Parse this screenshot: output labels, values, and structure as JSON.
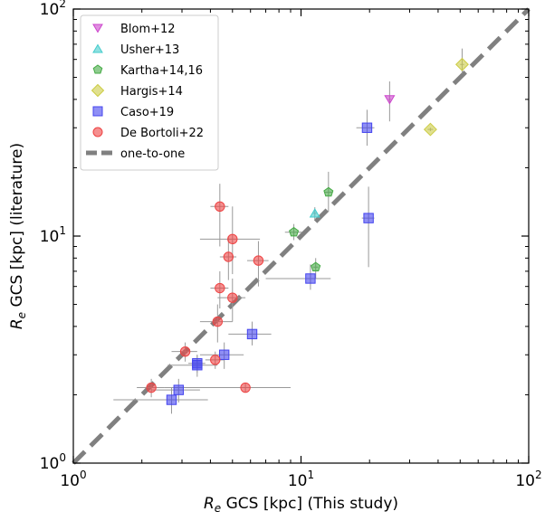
{
  "chart_data": {
    "type": "scatter",
    "xscale": "log",
    "yscale": "log",
    "xlim": [
      1,
      100
    ],
    "ylim": [
      1,
      100
    ],
    "xlabel_var": "R",
    "xlabel_sub": "e",
    "xlabel_rest": " GCS [kpc] (This study)",
    "ylabel_var": "R",
    "ylabel_sub": "e",
    "ylabel_rest": " GCS [kpc] (literature)",
    "xticks": [
      {
        "value": 1,
        "base": "10",
        "exp": "0"
      },
      {
        "value": 10,
        "base": "10",
        "exp": "1"
      },
      {
        "value": 100,
        "base": "10",
        "exp": "2"
      }
    ],
    "yticks": [
      {
        "value": 1,
        "base": "10",
        "exp": "0"
      },
      {
        "value": 10,
        "base": "10",
        "exp": "1"
      },
      {
        "value": 100,
        "base": "10",
        "exp": "2"
      }
    ],
    "legend_position": "top-left",
    "reference_line": {
      "name": "one-to-one",
      "color": "#808080"
    },
    "series": [
      {
        "name": "Blom+12",
        "marker": "triangle-down",
        "color": "#cc44cc",
        "points": [
          {
            "x": 24.5,
            "y": 40,
            "xerr": [
              24.2,
              24.8
            ],
            "yerr": [
              32,
              48
            ]
          }
        ]
      },
      {
        "name": "Usher+13",
        "marker": "triangle-up",
        "color": "#44cccc",
        "points": [
          {
            "x": 11.5,
            "y": 12.6,
            "xerr": [
              11.3,
              11.7
            ],
            "yerr": [
              11.8,
              13.4
            ]
          }
        ]
      },
      {
        "name": "Kartha+14,16",
        "marker": "pentagon",
        "color": "#44aa44",
        "points": [
          {
            "x": 9.3,
            "y": 10.4,
            "xerr": [
              8.5,
              10.1
            ],
            "yerr": [
              9.6,
              11.3
            ]
          },
          {
            "x": 13.2,
            "y": 15.6,
            "xerr": [
              12.7,
              13.7
            ],
            "yerr": [
              12.8,
              19.2
            ]
          },
          {
            "x": 11.6,
            "y": 7.3,
            "xerr": [
              11.3,
              11.9
            ],
            "yerr": [
              6.5,
              8.0
            ]
          }
        ]
      },
      {
        "name": "Hargis+14",
        "marker": "diamond",
        "color": "#cccc44",
        "points": [
          {
            "x": 51,
            "y": 57,
            "xerr": [
              50,
              52
            ],
            "yerr": [
              52,
              67
            ]
          },
          {
            "x": 37,
            "y": 29.5,
            "xerr": [
              36,
              38
            ],
            "yerr": [
              29,
              30
            ]
          }
        ]
      },
      {
        "name": "Caso+19",
        "marker": "square",
        "color": "#4444ee",
        "points": [
          {
            "x": 19.5,
            "y": 30,
            "xerr": [
              17.5,
              21
            ],
            "yerr": [
              25,
              36
            ]
          },
          {
            "x": 19.8,
            "y": 12,
            "xerr": [
              18.5,
              21
            ],
            "yerr": [
              7.3,
              16.5
            ]
          },
          {
            "x": 11.0,
            "y": 6.5,
            "xerr": [
              7,
              13.5
            ],
            "yerr": [
              5.8,
              7.5
            ]
          },
          {
            "x": 6.1,
            "y": 3.7,
            "xerr": [
              4.8,
              7.4
            ],
            "yerr": [
              3.3,
              4.2
            ]
          },
          {
            "x": 4.6,
            "y": 3.0,
            "xerr": [
              3.6,
              5.6
            ],
            "yerr": [
              2.6,
              3.4
            ]
          },
          {
            "x": 3.5,
            "y": 2.75,
            "xerr": [
              3.2,
              3.8
            ],
            "yerr": [
              2.5,
              3.0
            ]
          },
          {
            "x": 3.5,
            "y": 2.7,
            "xerr": [
              2.6,
              4.3
            ],
            "yerr": [
              2.4,
              3.0
            ]
          },
          {
            "x": 2.9,
            "y": 2.1,
            "xerr": [
              2.2,
              3.6
            ],
            "yerr": [
              1.85,
              2.35
            ]
          },
          {
            "x": 2.7,
            "y": 1.9,
            "xerr": [
              1.5,
              3.9
            ],
            "yerr": [
              1.65,
              2.15
            ]
          }
        ]
      },
      {
        "name": "De Bortoli+22",
        "marker": "circle",
        "color": "#ee4444",
        "points": [
          {
            "x": 4.4,
            "y": 13.5,
            "xerr": [
              4.0,
              4.8
            ],
            "yerr": [
              9.0,
              17.0
            ]
          },
          {
            "x": 5.0,
            "y": 9.7,
            "xerr": [
              3.6,
              6.6
            ],
            "yerr": [
              6.8,
              13.5
            ]
          },
          {
            "x": 4.8,
            "y": 8.1,
            "xerr": [
              4.4,
              5.2
            ],
            "yerr": [
              6.4,
              10.0
            ]
          },
          {
            "x": 6.5,
            "y": 7.8,
            "xerr": [
              5.8,
              7.2
            ],
            "yerr": [
              6.0,
              9.5
            ]
          },
          {
            "x": 4.4,
            "y": 5.9,
            "xerr": [
              4.0,
              4.8
            ],
            "yerr": [
              4.8,
              7.0
            ]
          },
          {
            "x": 5.0,
            "y": 5.35,
            "xerr": [
              4.3,
              5.7
            ],
            "yerr": [
              4.2,
              6.5
            ]
          },
          {
            "x": 4.3,
            "y": 4.2,
            "xerr": [
              3.6,
              5.0
            ],
            "yerr": [
              3.4,
              5.0
            ]
          },
          {
            "x": 3.1,
            "y": 3.1,
            "xerr": [
              2.7,
              3.5
            ],
            "yerr": [
              2.8,
              3.4
            ]
          },
          {
            "x": 4.2,
            "y": 2.85,
            "xerr": [
              3.8,
              4.6
            ],
            "yerr": [
              2.6,
              3.1
            ]
          },
          {
            "x": 2.2,
            "y": 2.15,
            "xerr": [
              1.9,
              2.5
            ],
            "yerr": [
              1.95,
              2.35
            ]
          },
          {
            "x": 5.7,
            "y": 2.15,
            "xerr": [
              2.5,
              9.0
            ],
            "yerr": [
              2.05,
              2.25
            ]
          }
        ]
      }
    ]
  }
}
